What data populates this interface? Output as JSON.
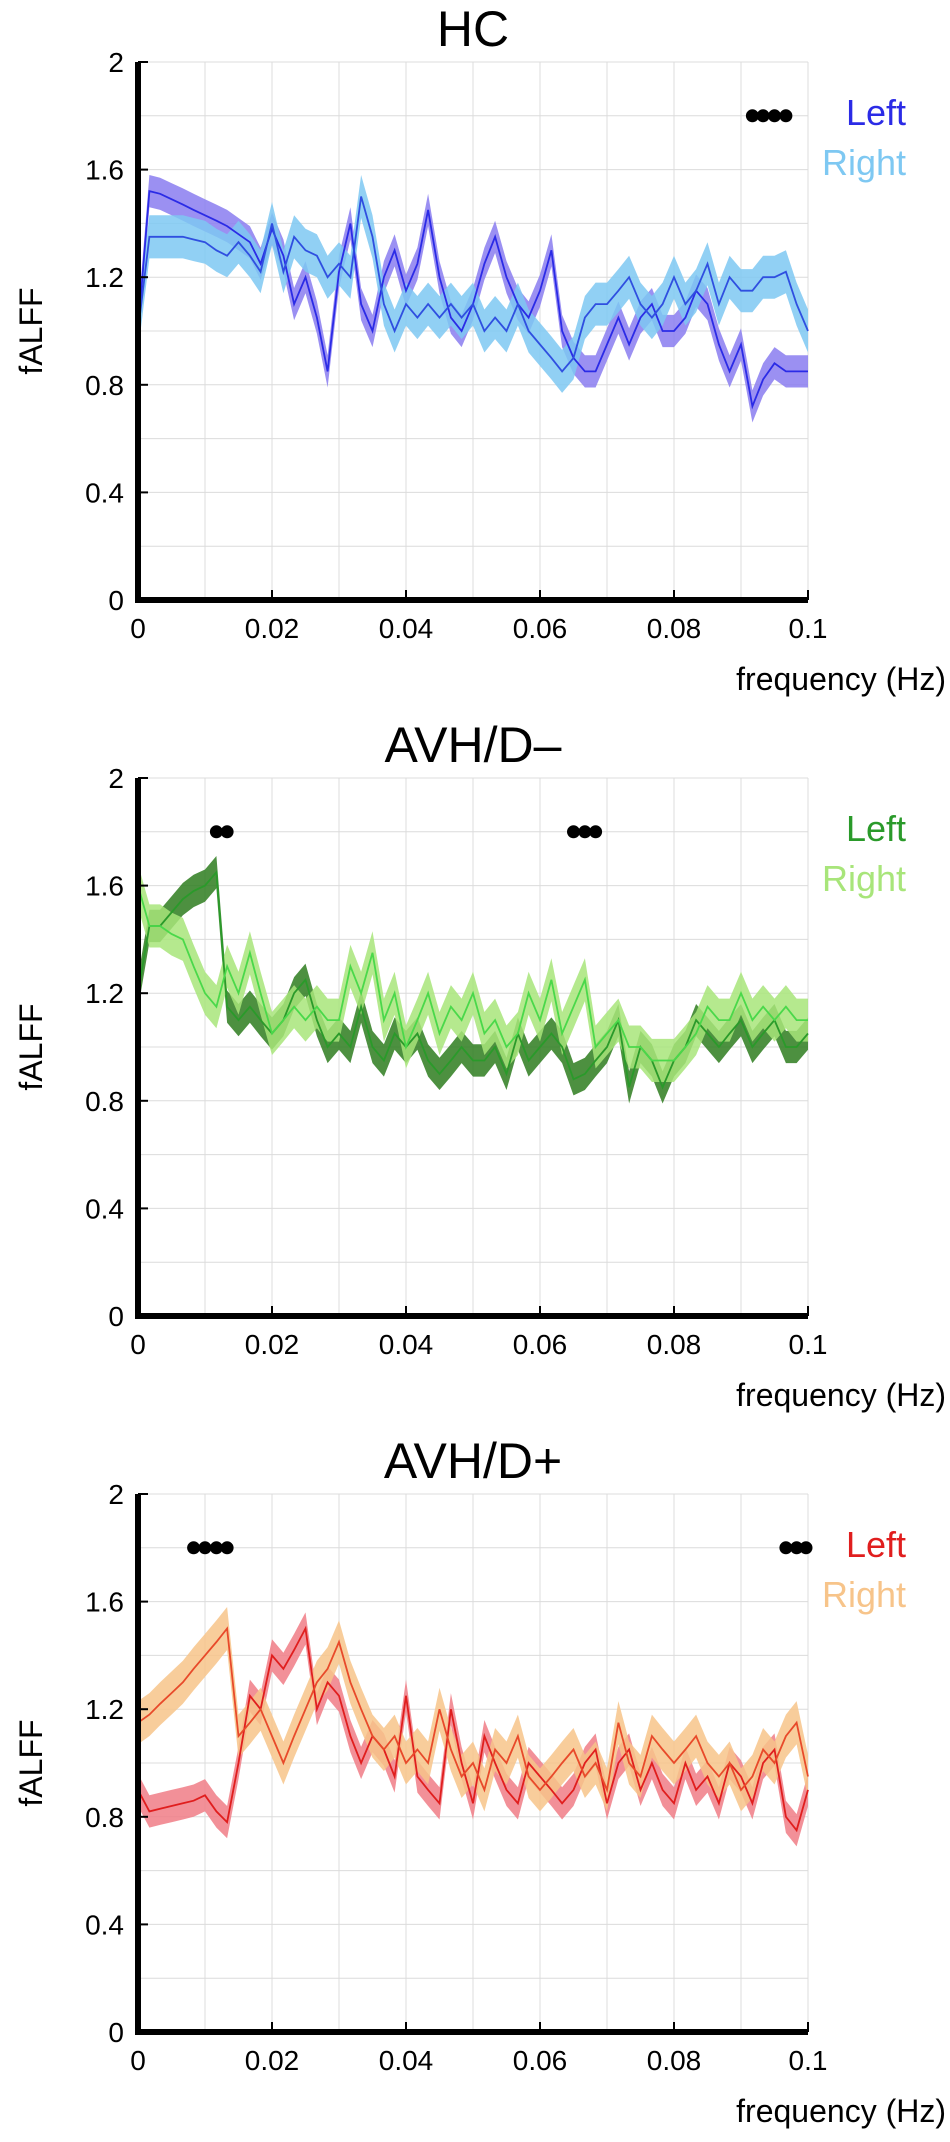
{
  "chart_data": [
    {
      "type": "line",
      "title": "HC",
      "xlabel": "frequency (Hz)",
      "ylabel": "fALFF",
      "xlim": [
        0,
        0.1
      ],
      "ylim": [
        0,
        2
      ],
      "xticks": [
        "0",
        "0.02",
        "0.04",
        "0.06",
        "0.08",
        "0.1"
      ],
      "yticks": [
        "0",
        "0.4",
        "0.8",
        "1.2",
        "1.6",
        "2"
      ],
      "grid": true,
      "legend_position": "top-right",
      "x": [
        0,
        0.0017,
        0.0033,
        0.005,
        0.0067,
        0.0083,
        0.01,
        0.0117,
        0.0133,
        0.015,
        0.0167,
        0.0183,
        0.02,
        0.0217,
        0.0233,
        0.025,
        0.0267,
        0.0283,
        0.03,
        0.0317,
        0.0333,
        0.035,
        0.0367,
        0.0383,
        0.04,
        0.0417,
        0.0433,
        0.045,
        0.0467,
        0.0483,
        0.05,
        0.0517,
        0.0533,
        0.055,
        0.0567,
        0.0583,
        0.06,
        0.0617,
        0.0633,
        0.065,
        0.0667,
        0.0683,
        0.07,
        0.0717,
        0.0733,
        0.075,
        0.0767,
        0.0783,
        0.08,
        0.0817,
        0.0833,
        0.085,
        0.0867,
        0.0883,
        0.09,
        0.0917,
        0.0933,
        0.095,
        0.0967,
        0.0983,
        0.1
      ],
      "series": [
        {
          "name": "Left",
          "color": "#2b2be6",
          "fill": "#8a7cf0",
          "values": [
            1.0,
            1.52,
            1.51,
            1.49,
            1.47,
            1.45,
            1.43,
            1.41,
            1.39,
            1.36,
            1.33,
            1.25,
            1.38,
            1.28,
            1.1,
            1.2,
            1.05,
            0.85,
            1.22,
            1.4,
            1.1,
            1.0,
            1.2,
            1.3,
            1.15,
            1.25,
            1.45,
            1.2,
            1.05,
            1.0,
            1.1,
            1.25,
            1.35,
            1.2,
            1.1,
            1.05,
            1.15,
            1.3,
            1.0,
            0.9,
            0.85,
            0.85,
            0.95,
            1.05,
            0.95,
            1.05,
            1.1,
            1.0,
            1.0,
            1.05,
            1.15,
            1.1,
            0.95,
            0.85,
            0.95,
            0.72,
            0.82,
            0.88,
            0.85,
            0.85,
            0.85
          ],
          "band": 0.06
        },
        {
          "name": "Right",
          "color": "#2f4fe0",
          "fill": "#7ec8f2",
          "values": [
            1.0,
            1.35,
            1.35,
            1.35,
            1.35,
            1.34,
            1.33,
            1.3,
            1.28,
            1.33,
            1.28,
            1.22,
            1.4,
            1.22,
            1.35,
            1.3,
            1.28,
            1.2,
            1.25,
            1.2,
            1.5,
            1.35,
            1.1,
            1.0,
            1.1,
            1.05,
            1.1,
            1.05,
            1.1,
            1.05,
            1.1,
            1.0,
            1.05,
            1.0,
            1.1,
            1.0,
            0.95,
            0.9,
            0.85,
            0.9,
            1.05,
            1.1,
            1.1,
            1.15,
            1.2,
            1.1,
            1.05,
            1.1,
            1.2,
            1.1,
            1.15,
            1.25,
            1.1,
            1.2,
            1.15,
            1.15,
            1.2,
            1.2,
            1.22,
            1.1,
            1.0
          ],
          "band": 0.08
        }
      ],
      "significance_markers": [
        0.0917,
        0.0933,
        0.095,
        0.0967
      ]
    },
    {
      "type": "line",
      "title": "AVH/D–",
      "xlabel": "frequency (Hz)",
      "ylabel": "fALFF",
      "xlim": [
        0,
        0.1
      ],
      "ylim": [
        0,
        2
      ],
      "xticks": [
        "0",
        "0.02",
        "0.04",
        "0.06",
        "0.08",
        "0.1"
      ],
      "yticks": [
        "0",
        "0.4",
        "0.8",
        "1.2",
        "1.6",
        "2"
      ],
      "grid": true,
      "legend_position": "top-right",
      "x": [
        0,
        0.0017,
        0.0033,
        0.005,
        0.0067,
        0.0083,
        0.01,
        0.0117,
        0.0133,
        0.015,
        0.0167,
        0.0183,
        0.02,
        0.0217,
        0.0233,
        0.025,
        0.0267,
        0.0283,
        0.03,
        0.0317,
        0.0333,
        0.035,
        0.0367,
        0.0383,
        0.04,
        0.0417,
        0.0433,
        0.045,
        0.0467,
        0.0483,
        0.05,
        0.0517,
        0.0533,
        0.055,
        0.0567,
        0.0583,
        0.06,
        0.0617,
        0.0633,
        0.065,
        0.0667,
        0.0683,
        0.07,
        0.0717,
        0.0733,
        0.075,
        0.0767,
        0.0783,
        0.08,
        0.0817,
        0.0833,
        0.085,
        0.0867,
        0.0883,
        0.09,
        0.0917,
        0.0933,
        0.095,
        0.0967,
        0.0983,
        0.1
      ],
      "series": [
        {
          "name": "Left",
          "color": "#2a9a2a",
          "fill": "#2e7d1f",
          "values": [
            1.2,
            1.45,
            1.45,
            1.5,
            1.55,
            1.58,
            1.6,
            1.65,
            1.15,
            1.1,
            1.15,
            1.1,
            1.05,
            1.1,
            1.2,
            1.25,
            1.1,
            1.0,
            1.05,
            1.0,
            1.15,
            1.0,
            0.95,
            1.05,
            1.0,
            1.05,
            0.95,
            0.9,
            0.95,
            1.0,
            0.95,
            0.95,
            1.0,
            0.9,
            1.05,
            0.95,
            1.0,
            1.05,
            1.0,
            0.88,
            0.9,
            0.95,
            1.0,
            1.1,
            0.85,
            1.0,
            0.95,
            0.85,
            0.95,
            1.0,
            1.1,
            1.05,
            1.0,
            1.05,
            1.1,
            1.0,
            1.05,
            1.1,
            1.0,
            1.0,
            1.05
          ],
          "band": 0.06
        },
        {
          "name": "Right",
          "color": "#4ad84a",
          "fill": "#a8e57a",
          "values": [
            1.6,
            1.45,
            1.45,
            1.42,
            1.4,
            1.3,
            1.2,
            1.15,
            1.3,
            1.2,
            1.35,
            1.2,
            1.05,
            1.1,
            1.15,
            1.1,
            1.15,
            1.1,
            1.1,
            1.3,
            1.2,
            1.35,
            1.1,
            1.2,
            1.0,
            1.1,
            1.2,
            1.05,
            1.15,
            1.1,
            1.2,
            1.05,
            1.1,
            1.0,
            1.05,
            1.2,
            1.1,
            1.25,
            1.05,
            1.15,
            1.25,
            1.0,
            1.05,
            1.1,
            1.0,
            1.0,
            0.95,
            0.95,
            0.95,
            1.0,
            1.05,
            1.15,
            1.1,
            1.1,
            1.2,
            1.1,
            1.15,
            1.1,
            1.15,
            1.1,
            1.1
          ],
          "band": 0.08
        }
      ],
      "significance_markers": [
        0.0117,
        0.0133,
        0.065,
        0.0667,
        0.0683
      ]
    },
    {
      "type": "line",
      "title": "AVH/D+",
      "xlabel": "frequency (Hz)",
      "ylabel": "fALFF",
      "xlim": [
        0,
        0.1
      ],
      "ylim": [
        0,
        2
      ],
      "xticks": [
        "0",
        "0.02",
        "0.04",
        "0.06",
        "0.08",
        "0.1"
      ],
      "yticks": [
        "0",
        "0.4",
        "0.8",
        "1.2",
        "1.6",
        "2"
      ],
      "grid": true,
      "legend_position": "top-right",
      "x": [
        0,
        0.0017,
        0.0033,
        0.005,
        0.0067,
        0.0083,
        0.01,
        0.0117,
        0.0133,
        0.015,
        0.0167,
        0.0183,
        0.02,
        0.0217,
        0.0233,
        0.025,
        0.0267,
        0.0283,
        0.03,
        0.0317,
        0.0333,
        0.035,
        0.0367,
        0.0383,
        0.04,
        0.0417,
        0.0433,
        0.045,
        0.0467,
        0.0483,
        0.05,
        0.0517,
        0.0533,
        0.055,
        0.0567,
        0.0583,
        0.06,
        0.0617,
        0.0633,
        0.065,
        0.0667,
        0.0683,
        0.07,
        0.0717,
        0.0733,
        0.075,
        0.0767,
        0.0783,
        0.08,
        0.0817,
        0.0833,
        0.085,
        0.0867,
        0.0883,
        0.09,
        0.0917,
        0.0933,
        0.095,
        0.0967,
        0.0983,
        0.1
      ],
      "series": [
        {
          "name": "Left",
          "color": "#e01e1e",
          "fill": "#f07c86",
          "values": [
            0.9,
            0.82,
            0.83,
            0.84,
            0.85,
            0.86,
            0.88,
            0.82,
            0.78,
            1.0,
            1.25,
            1.2,
            1.4,
            1.35,
            1.42,
            1.5,
            1.2,
            1.3,
            1.25,
            1.1,
            1.0,
            1.1,
            1.05,
            0.95,
            1.25,
            0.95,
            0.9,
            0.85,
            1.2,
            1.0,
            0.85,
            1.1,
            1.0,
            0.9,
            0.85,
            1.0,
            0.95,
            0.9,
            0.85,
            0.9,
            1.0,
            1.05,
            0.85,
            1.0,
            1.05,
            0.9,
            1.0,
            0.9,
            0.85,
            1.0,
            0.9,
            0.95,
            0.85,
            1.0,
            0.95,
            0.85,
            1.0,
            1.05,
            0.8,
            0.75,
            0.9
          ],
          "band": 0.06
        },
        {
          "name": "Right",
          "color": "#e84a2a",
          "fill": "#f7c48a",
          "values": [
            1.15,
            1.18,
            1.22,
            1.26,
            1.3,
            1.35,
            1.4,
            1.45,
            1.5,
            1.1,
            1.15,
            1.2,
            1.1,
            1.0,
            1.1,
            1.2,
            1.3,
            1.35,
            1.45,
            1.3,
            1.2,
            1.1,
            1.05,
            1.1,
            1.0,
            1.05,
            1.0,
            1.2,
            1.05,
            0.95,
            1.0,
            0.9,
            1.05,
            1.0,
            1.1,
            0.95,
            0.9,
            0.95,
            1.0,
            1.05,
            0.95,
            1.0,
            0.9,
            1.15,
            1.0,
            0.95,
            1.1,
            1.05,
            1.0,
            1.05,
            1.1,
            1.0,
            0.95,
            1.0,
            0.9,
            0.95,
            1.05,
            1.0,
            1.1,
            1.15,
            0.95
          ],
          "band": 0.08
        }
      ],
      "significance_markers": [
        0.0083,
        0.01,
        0.0117,
        0.0133,
        0.0967,
        0.0983,
        0.1
      ]
    }
  ]
}
